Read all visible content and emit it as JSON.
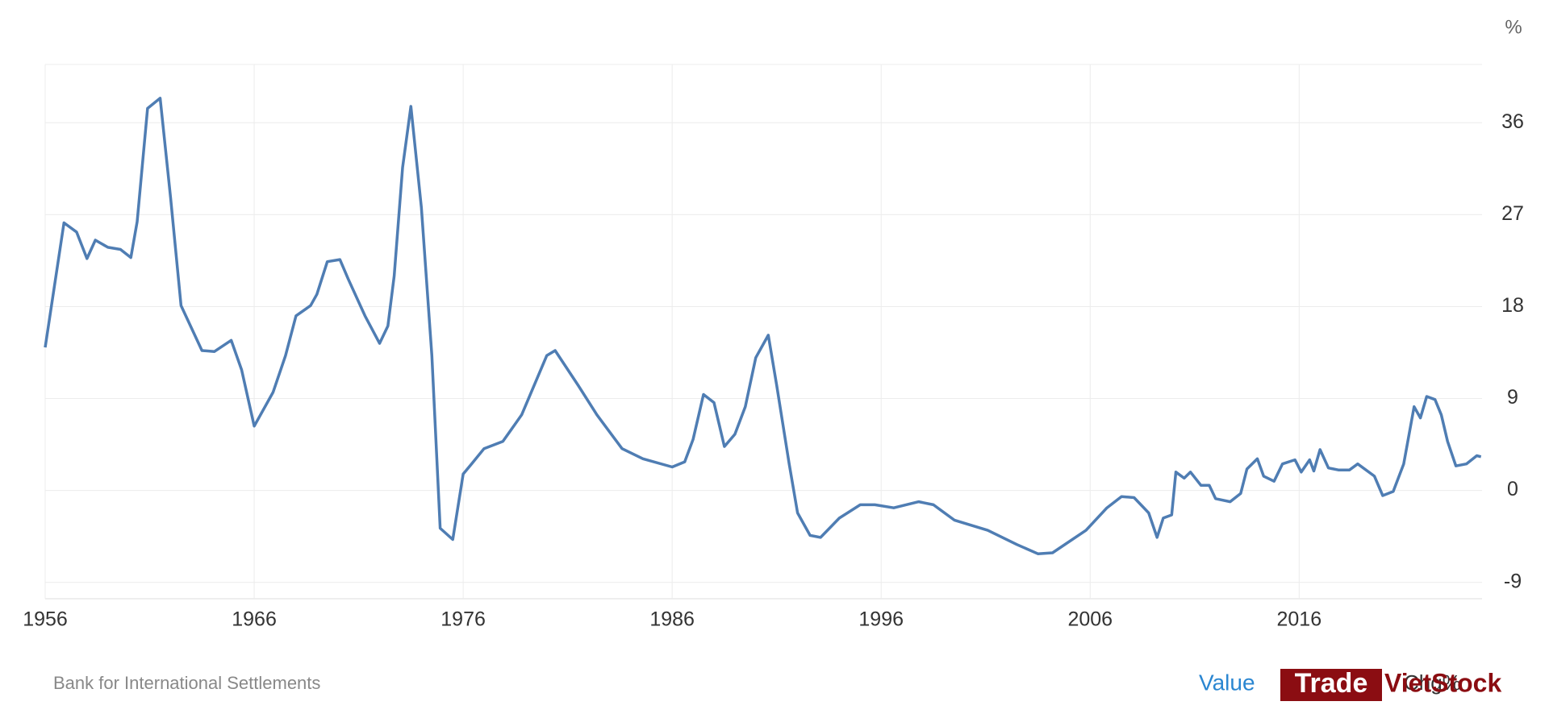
{
  "chart_data": {
    "type": "line",
    "unit_label": "%",
    "color": "#4f7db3",
    "grid": true,
    "x": [
      1956.0,
      1956.9,
      1957.5,
      1958.0,
      1958.4,
      1959.0,
      1959.6,
      1960.1,
      1960.4,
      1960.9,
      1961.5,
      1962.0,
      1962.5,
      1963.5,
      1964.1,
      1964.9,
      1965.4,
      1966.0,
      1966.9,
      1967.5,
      1968.0,
      1968.7,
      1969.0,
      1969.5,
      1970.1,
      1970.5,
      1971.3,
      1972.0,
      1972.4,
      1972.7,
      1973.1,
      1973.5,
      1974.0,
      1974.5,
      1974.9,
      1975.5,
      1976.0,
      1976.4,
      1977.0,
      1977.9,
      1978.8,
      1980.0,
      1980.4,
      1981.5,
      1982.4,
      1983.6,
      1984.6,
      1986.0,
      1986.6,
      1987.0,
      1987.5,
      1988.0,
      1988.5,
      1989.0,
      1989.5,
      1990.0,
      1990.6,
      1991.0,
      1991.6,
      1992.0,
      1992.6,
      1993.1,
      1994.0,
      1995.0,
      1995.7,
      1996.6,
      1997.8,
      1998.5,
      1999.5,
      2001.1,
      2002.5,
      2003.5,
      2004.2,
      2005.8,
      2006.8,
      2007.5,
      2008.1,
      2008.8,
      2009.2,
      2009.5,
      2009.9,
      2010.1,
      2010.5,
      2010.8,
      2011.3,
      2011.7,
      2012.0,
      2012.7,
      2013.2,
      2013.5,
      2014.0,
      2014.3,
      2014.8,
      2015.2,
      2015.8,
      2016.1,
      2016.5,
      2016.7,
      2017.0,
      2017.4,
      2017.9,
      2018.4,
      2018.8,
      2019.6,
      2020.0,
      2020.5,
      2021.0,
      2021.5,
      2021.8,
      2022.1,
      2022.5,
      2022.8,
      2023.1,
      2023.5,
      2024.0,
      2024.5,
      2024.7
    ],
    "values": [
      14.0,
      26.2,
      25.3,
      22.7,
      24.5,
      23.8,
      23.6,
      22.8,
      26.3,
      37.4,
      38.4,
      28.7,
      18.1,
      13.7,
      13.6,
      14.7,
      11.8,
      6.3,
      9.6,
      13.2,
      17.1,
      18.1,
      19.2,
      22.4,
      22.6,
      20.7,
      17.1,
      14.4,
      16.1,
      21.0,
      31.6,
      37.6,
      27.7,
      13.2,
      -3.7,
      -4.8,
      1.6,
      2.6,
      4.1,
      4.8,
      7.4,
      13.2,
      13.7,
      10.3,
      7.4,
      4.1,
      3.1,
      2.3,
      2.8,
      5.0,
      9.4,
      8.6,
      4.3,
      5.5,
      8.2,
      13.0,
      15.2,
      10.3,
      2.6,
      -2.2,
      -4.4,
      -4.6,
      -2.7,
      -1.4,
      -1.4,
      -1.7,
      -1.1,
      -1.4,
      -2.9,
      -3.9,
      -5.3,
      -6.2,
      -6.1,
      -3.9,
      -1.7,
      -0.6,
      -0.7,
      -2.2,
      -4.6,
      -2.7,
      -2.4,
      1.8,
      1.2,
      1.8,
      0.5,
      0.5,
      -0.8,
      -1.1,
      -0.3,
      2.1,
      3.1,
      1.4,
      0.9,
      2.6,
      3.0,
      1.8,
      3.0,
      1.9,
      4.0,
      2.2,
      2.0,
      2.0,
      2.6,
      1.4,
      -0.5,
      -0.1,
      2.6,
      8.2,
      7.1,
      9.2,
      8.9,
      7.4,
      4.8,
      2.4,
      2.6,
      3.4,
      3.3
    ],
    "xlim": [
      1956,
      2024.75
    ],
    "xticks": [
      1956,
      1966,
      1976,
      1986,
      1996,
      2006,
      2016
    ],
    "ylim": [
      -10.6,
      41.7
    ],
    "yticks": [
      -9,
      0,
      9,
      18,
      27,
      36
    ],
    "source": "Bank for International Settlements",
    "buttons": [
      "Value",
      "Chg%"
    ],
    "watermark": [
      "Trade",
      "VietStock"
    ]
  }
}
